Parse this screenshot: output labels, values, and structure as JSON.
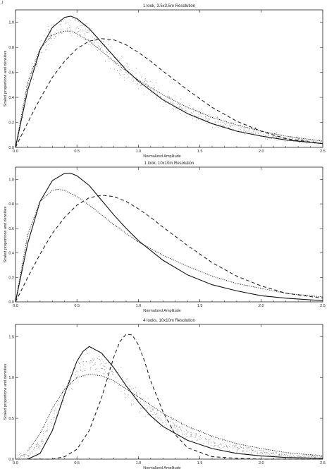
{
  "page": {
    "corner_mark": "J"
  },
  "chart_data": [
    {
      "type": "line",
      "title": "1 look, 3.5x3.5m Resolution",
      "xlabel": "Normalized Amplitude",
      "ylabel": "Scaled proportions and densities",
      "xlim": [
        0,
        2.5
      ],
      "ylim": [
        0,
        1.1
      ],
      "xticks": [
        "0.0",
        "0.5",
        "1.0",
        "1.5",
        "2.0",
        "2.5"
      ],
      "yticks": [
        "0.0",
        "0.2",
        "0.4",
        "0.6",
        "0.8",
        "1.0"
      ],
      "ytick_values": [
        0,
        0.2,
        0.4,
        0.6,
        0.8,
        1.0
      ],
      "series": [
        {
          "style": "solid",
          "x": [
            0,
            0.1,
            0.2,
            0.3,
            0.4,
            0.45,
            0.5,
            0.6,
            0.7,
            0.8,
            0.9,
            1.0,
            1.2,
            1.4,
            1.6,
            1.8,
            2.0,
            2.2,
            2.5
          ],
          "y": [
            0,
            0.46,
            0.78,
            0.96,
            1.04,
            1.05,
            1.03,
            0.95,
            0.84,
            0.73,
            0.62,
            0.53,
            0.38,
            0.27,
            0.19,
            0.13,
            0.09,
            0.06,
            0.03
          ]
        },
        {
          "style": "dotted",
          "x": [
            0,
            0.1,
            0.2,
            0.3,
            0.4,
            0.45,
            0.5,
            0.6,
            0.7,
            0.8,
            0.9,
            1.0,
            1.2,
            1.4,
            1.6,
            1.8,
            2.0,
            2.2,
            2.5
          ],
          "y": [
            0,
            0.52,
            0.79,
            0.9,
            0.93,
            0.93,
            0.91,
            0.85,
            0.77,
            0.69,
            0.61,
            0.54,
            0.42,
            0.32,
            0.24,
            0.18,
            0.13,
            0.09,
            0.05
          ]
        },
        {
          "style": "dashed",
          "x": [
            0,
            0.1,
            0.2,
            0.3,
            0.4,
            0.5,
            0.6,
            0.7,
            0.8,
            0.9,
            1.0,
            1.1,
            1.2,
            1.4,
            1.6,
            1.8,
            2.0,
            2.2,
            2.5
          ],
          "y": [
            0,
            0.2,
            0.39,
            0.56,
            0.69,
            0.79,
            0.85,
            0.87,
            0.86,
            0.82,
            0.76,
            0.69,
            0.61,
            0.46,
            0.32,
            0.21,
            0.13,
            0.07,
            0.03
          ]
        }
      ],
      "scatter_noise": 0.09
    },
    {
      "type": "line",
      "title": "1 look, 10x10m Resolution",
      "xlabel": "Normalized Amplitude",
      "ylabel": "Scaled proportions and densities",
      "xlim": [
        0,
        2.5
      ],
      "ylim": [
        0,
        1.1
      ],
      "xticks": [
        "0.0",
        "0.5",
        "1.0",
        "1.5",
        "2.0",
        "2.5"
      ],
      "yticks": [
        "0.0",
        "0.2",
        "0.4",
        "0.6",
        "0.8",
        "1.0"
      ],
      "ytick_values": [
        0,
        0.2,
        0.4,
        0.6,
        0.8,
        1.0
      ],
      "series": [
        {
          "style": "solid",
          "x": [
            0,
            0.1,
            0.2,
            0.3,
            0.4,
            0.45,
            0.5,
            0.6,
            0.7,
            0.8,
            0.9,
            1.0,
            1.2,
            1.4,
            1.6,
            1.8,
            2.0,
            2.2,
            2.5
          ],
          "y": [
            0,
            0.48,
            0.82,
            0.99,
            1.05,
            1.05,
            1.03,
            0.95,
            0.83,
            0.71,
            0.6,
            0.5,
            0.34,
            0.22,
            0.14,
            0.09,
            0.05,
            0.03,
            0.01
          ]
        },
        {
          "style": "dotted",
          "x": [
            0,
            0.1,
            0.2,
            0.3,
            0.35,
            0.4,
            0.5,
            0.6,
            0.7,
            0.8,
            0.9,
            1.0,
            1.2,
            1.4,
            1.6,
            1.8,
            2.0,
            2.2,
            2.5
          ],
          "y": [
            0,
            0.55,
            0.82,
            0.91,
            0.92,
            0.91,
            0.86,
            0.79,
            0.71,
            0.63,
            0.56,
            0.49,
            0.38,
            0.29,
            0.21,
            0.15,
            0.11,
            0.07,
            0.04
          ]
        },
        {
          "style": "dashed",
          "x": [
            0,
            0.1,
            0.2,
            0.3,
            0.4,
            0.5,
            0.6,
            0.7,
            0.8,
            0.9,
            1.0,
            1.1,
            1.2,
            1.4,
            1.6,
            1.8,
            2.0,
            2.2,
            2.5
          ],
          "y": [
            0,
            0.2,
            0.39,
            0.56,
            0.69,
            0.79,
            0.85,
            0.87,
            0.86,
            0.82,
            0.76,
            0.69,
            0.61,
            0.46,
            0.32,
            0.21,
            0.13,
            0.07,
            0.03
          ]
        }
      ],
      "scatter_noise": 0.0
    },
    {
      "type": "line",
      "title": "4 looks, 10x10m Resolution",
      "xlabel": "Normalized Amplitude",
      "ylabel": "Scaled proportions and densities",
      "xlim": [
        0,
        2.5
      ],
      "ylim": [
        0,
        1.65
      ],
      "xticks": [
        "0.0",
        "0.5",
        "1.0",
        "1.5",
        "2.0",
        "2.5"
      ],
      "yticks": [
        "0.0",
        "0.5",
        "1.0",
        "1.5"
      ],
      "ytick_values": [
        0,
        0.5,
        1.0,
        1.5
      ],
      "series": [
        {
          "style": "solid",
          "x": [
            0.1,
            0.2,
            0.3,
            0.4,
            0.5,
            0.55,
            0.6,
            0.7,
            0.8,
            0.9,
            1.0,
            1.1,
            1.2,
            1.4,
            1.6,
            1.8,
            2.0,
            2.2,
            2.5
          ],
          "y": [
            0.0,
            0.07,
            0.35,
            0.8,
            1.2,
            1.32,
            1.38,
            1.3,
            1.12,
            0.9,
            0.7,
            0.53,
            0.4,
            0.23,
            0.13,
            0.07,
            0.04,
            0.02,
            0.01
          ]
        },
        {
          "style": "dotted",
          "x": [
            0.1,
            0.2,
            0.3,
            0.4,
            0.5,
            0.6,
            0.7,
            0.8,
            0.9,
            1.0,
            1.1,
            1.2,
            1.4,
            1.6,
            1.8,
            2.0,
            2.2,
            2.5
          ],
          "y": [
            0.1,
            0.31,
            0.62,
            0.86,
            1.0,
            1.04,
            1.02,
            0.96,
            0.86,
            0.76,
            0.66,
            0.56,
            0.4,
            0.28,
            0.19,
            0.13,
            0.08,
            0.04
          ]
        },
        {
          "style": "dashed",
          "x": [
            0.1,
            0.3,
            0.4,
            0.5,
            0.6,
            0.7,
            0.75,
            0.8,
            0.85,
            0.9,
            0.95,
            1.0,
            1.05,
            1.1,
            1.2,
            1.3,
            1.4,
            1.6,
            1.8,
            2.0,
            2.5
          ],
          "y": [
            0.0,
            0.0,
            0.03,
            0.12,
            0.35,
            0.75,
            1.0,
            1.25,
            1.44,
            1.53,
            1.52,
            1.4,
            1.2,
            0.96,
            0.58,
            0.3,
            0.14,
            0.03,
            0.01,
            0.0,
            0.0
          ]
        }
      ],
      "scatter_noise": 0.13
    }
  ]
}
